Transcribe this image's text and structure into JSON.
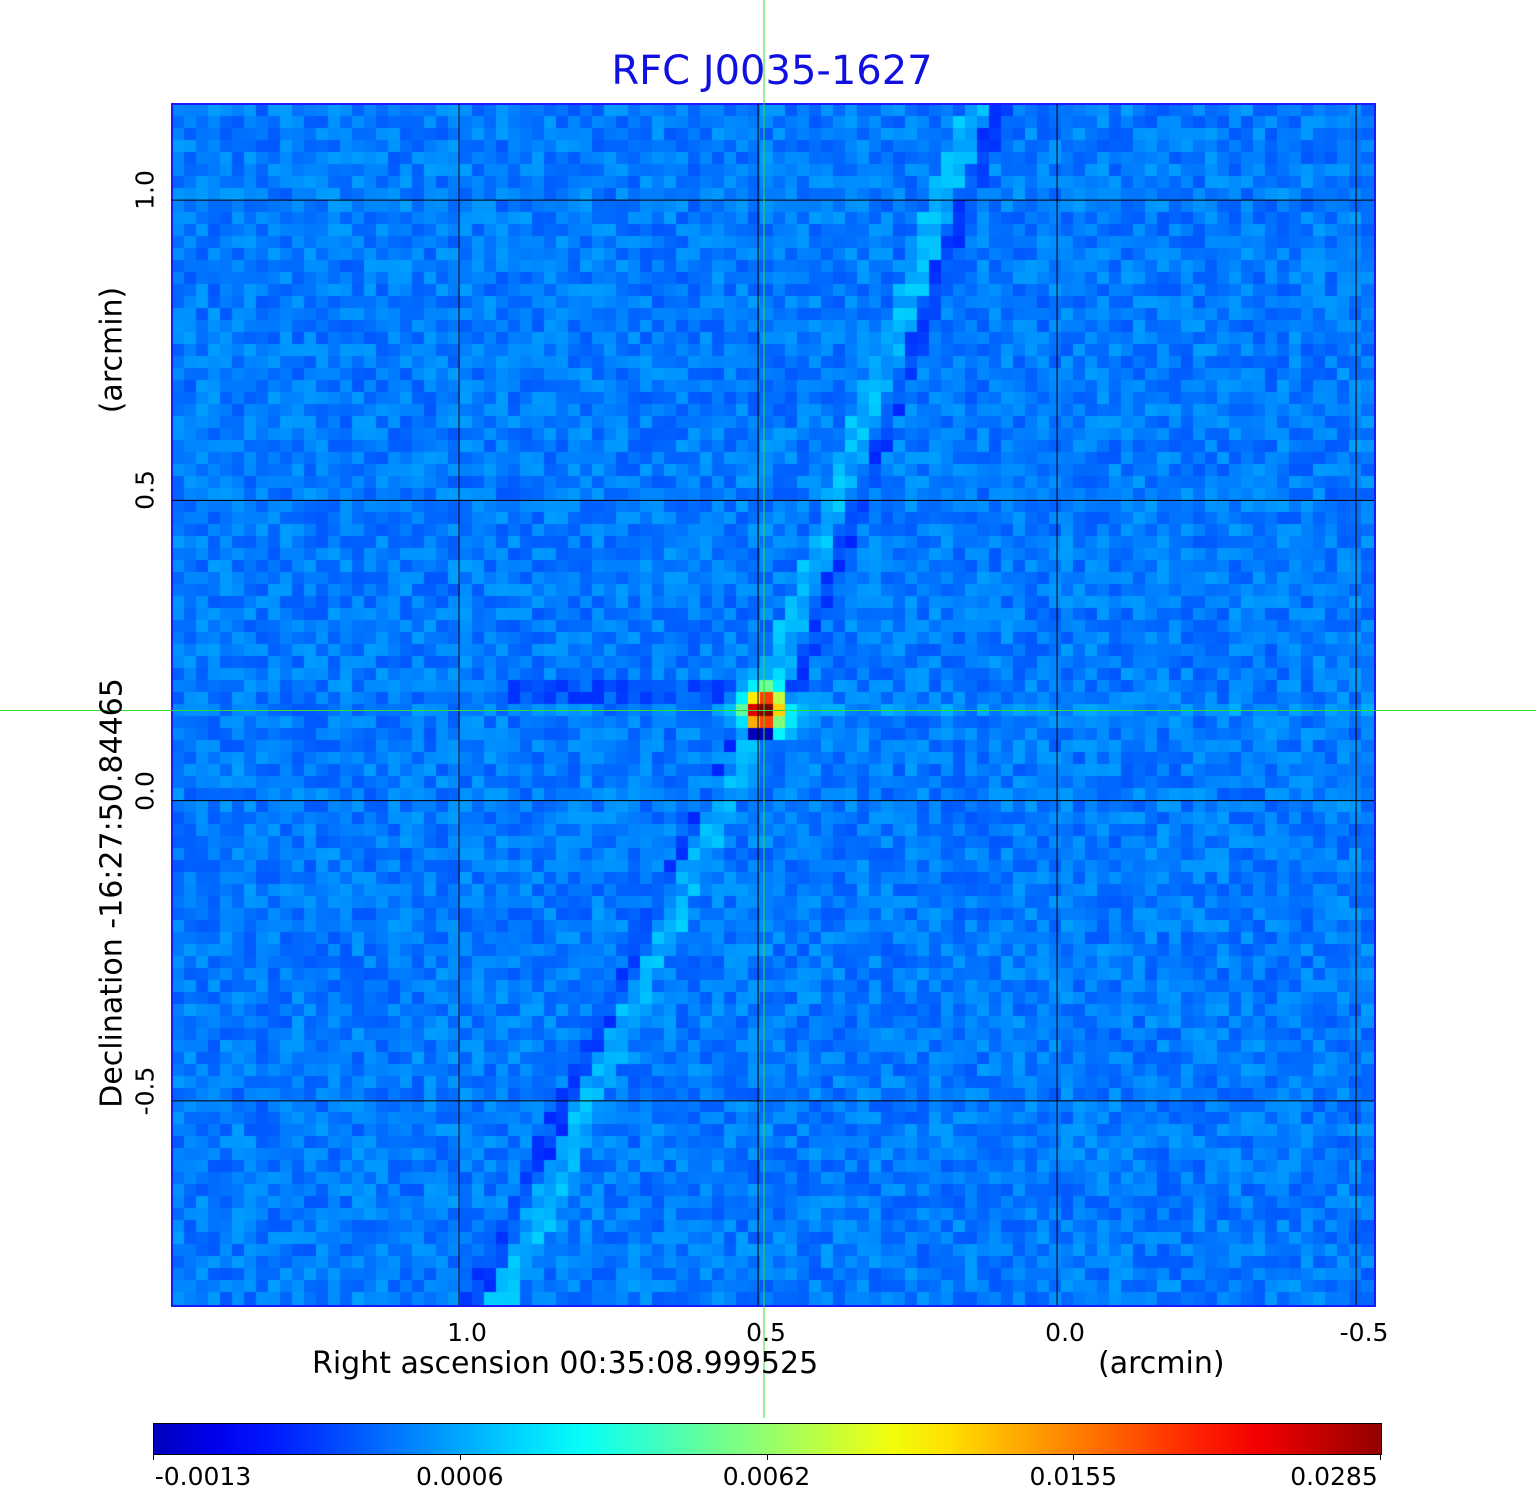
{
  "chart_data": {
    "type": "heatmap",
    "title": "RFC J0035-1627",
    "xlabel": "Right ascension  00:35:08.999525",
    "xlabel_unit": "(arcmin)",
    "ylabel": "Declination  -16:27:50.84465",
    "ylabel_unit": "(arcmin)",
    "xlim": [
      1.48,
      -0.53
    ],
    "ylim": [
      -0.84,
      1.16
    ],
    "x_ticks": [
      {
        "value": 1.0,
        "label": "1.0"
      },
      {
        "value": 0.5,
        "label": "0.5"
      },
      {
        "value": 0.0,
        "label": "0.0"
      },
      {
        "value": -0.5,
        "label": "-0.5"
      }
    ],
    "y_ticks": [
      {
        "value": 1.0,
        "label": "1.0"
      },
      {
        "value": 0.5,
        "label": "0.5"
      },
      {
        "value": 0.0,
        "label": "0.0"
      },
      {
        "value": -0.5,
        "label": "-0.5"
      }
    ],
    "grid": true,
    "crosshair": {
      "x": 0.49,
      "y": 0.15
    },
    "peak": {
      "x": 0.49,
      "y": 0.15,
      "value": 0.0285
    },
    "colormap": "jet",
    "colorbar": {
      "ticks": [
        "-0.0013",
        "0.0006",
        "0.0062",
        "0.0155",
        "0.0285"
      ],
      "min": -0.0013,
      "max": 0.0285,
      "placement": "bottom"
    }
  },
  "colors": {
    "title": "#1010e0",
    "frame": "#1a1aff",
    "crosshair": "#33dd33",
    "grid": "#000000"
  }
}
